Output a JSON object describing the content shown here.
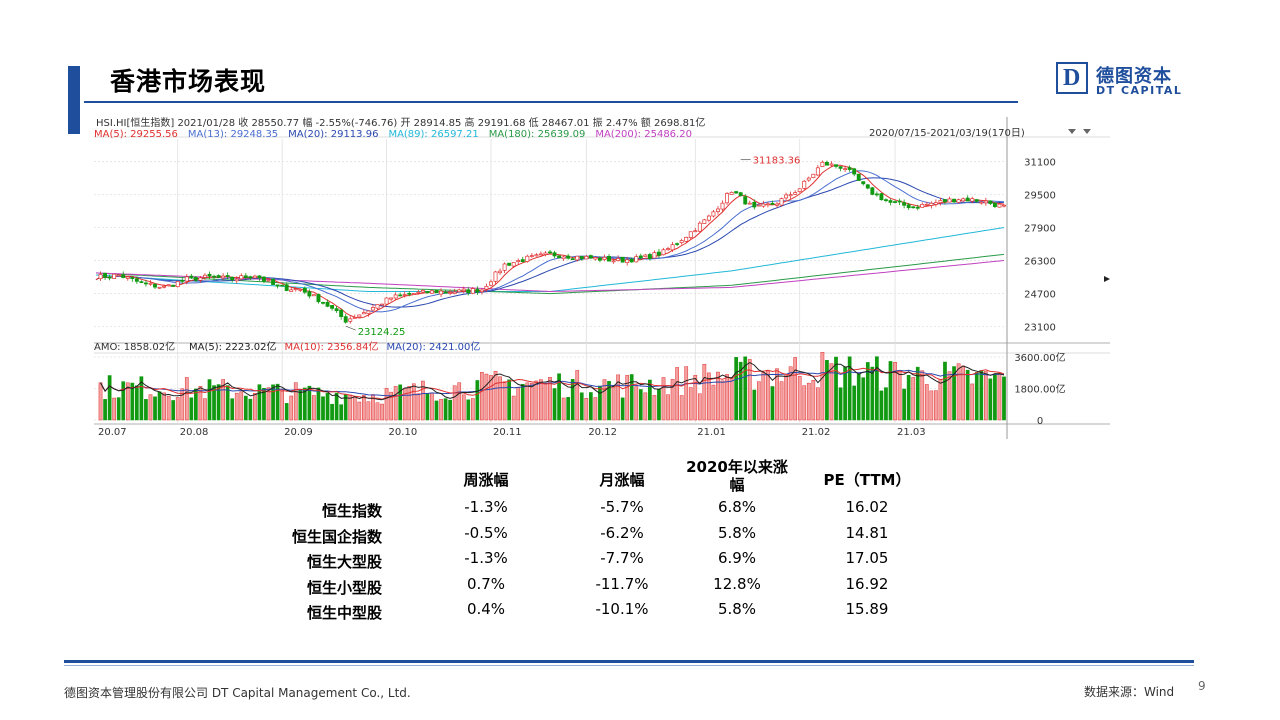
{
  "page": {
    "title": "香港市场表现",
    "logo_mark": "D",
    "logo_cn": "德图资本",
    "logo_en": "DT CAPITAL",
    "footer_left": "德图资本管理股份有限公司  DT Capital Management  Co., Ltd.",
    "footer_source": "数据来源：Wind",
    "page_number": "9"
  },
  "chart_data": [
    {
      "type": "candlestick",
      "header": "HSI.HI[恒生指数]    2021/01/28  收 28550.77  幅 -2.55%(-746.76)  开 28914.85  高 29191.68  低 28467.01  振 2.47%  额 2698.81亿",
      "period_label": "2020/07/15-2021/03/19(170日)",
      "ma_legend": [
        {
          "label": "MA(5): 29255.56",
          "color": "#e03030"
        },
        {
          "label": "MA(13): 29248.35",
          "color": "#4a6fd0"
        },
        {
          "label": "MA(20): 29113.96",
          "color": "#2a48b0"
        },
        {
          "label": "MA(89): 26597.21",
          "color": "#22b8d8"
        },
        {
          "label": "MA(180): 25639.09",
          "color": "#2a9a48"
        },
        {
          "label": "MA(200): 25486.20",
          "color": "#c040c0"
        }
      ],
      "y_ticks": [
        "31100",
        "29500",
        "27900",
        "26300",
        "24700",
        "23100"
      ],
      "ylim": [
        22500,
        31800
      ],
      "annotations": [
        {
          "label": "31183.36",
          "x_index": 142,
          "value": 31183.36
        },
        {
          "label": "23124.25",
          "x_index": 55,
          "value": 23124.25
        }
      ],
      "close_anchors": [
        [
          0,
          25500
        ],
        [
          5,
          25600
        ],
        [
          10,
          25200
        ],
        [
          15,
          25000
        ],
        [
          20,
          25400
        ],
        [
          25,
          25500
        ],
        [
          30,
          25400
        ],
        [
          35,
          25600
        ],
        [
          40,
          25000
        ],
        [
          45,
          24900
        ],
        [
          50,
          24300
        ],
        [
          55,
          23400
        ],
        [
          60,
          23900
        ],
        [
          65,
          24500
        ],
        [
          70,
          24700
        ],
        [
          75,
          24800
        ],
        [
          80,
          24800
        ],
        [
          85,
          24900
        ],
        [
          90,
          26100
        ],
        [
          95,
          26400
        ],
        [
          100,
          26600
        ],
        [
          105,
          26500
        ],
        [
          110,
          26400
        ],
        [
          115,
          26300
        ],
        [
          120,
          26400
        ],
        [
          125,
          26700
        ],
        [
          130,
          27500
        ],
        [
          135,
          28400
        ],
        [
          140,
          29700
        ],
        [
          145,
          28800
        ],
        [
          150,
          29100
        ],
        [
          155,
          29800
        ],
        [
          160,
          31000
        ],
        [
          165,
          30800
        ],
        [
          170,
          29700
        ],
        [
          175,
          29100
        ],
        [
          180,
          28900
        ],
        [
          185,
          29100
        ],
        [
          190,
          29300
        ],
        [
          195,
          29200
        ],
        [
          200,
          28900
        ]
      ],
      "ma_series": [
        {
          "name": "MA(89)",
          "color": "#22b8d8",
          "values": [
            [
              0,
              25600
            ],
            [
              60,
              24800
            ],
            [
              100,
              24800
            ],
            [
              140,
              25800
            ],
            [
              200,
              27900
            ]
          ]
        },
        {
          "name": "MA(180)",
          "color": "#2a9a48",
          "values": [
            [
              0,
              25700
            ],
            [
              60,
              25000
            ],
            [
              100,
              24700
            ],
            [
              140,
              25100
            ],
            [
              200,
              26600
            ]
          ]
        },
        {
          "name": "MA(200)",
          "color": "#c040c0",
          "values": [
            [
              0,
              25700
            ],
            [
              60,
              25200
            ],
            [
              100,
              24800
            ],
            [
              140,
              25000
            ],
            [
              200,
              26300
            ]
          ]
        }
      ]
    },
    {
      "type": "bar",
      "header_label": "AMO: 1858.02亿",
      "ma_legend": [
        {
          "label": "MA(5): 2223.02亿",
          "color": "#222222"
        },
        {
          "label": "MA(10): 2356.84亿",
          "color": "#e03030"
        },
        {
          "label": "MA(20): 2421.00亿",
          "color": "#2a48b0"
        }
      ],
      "y_ticks": [
        "3600.00亿",
        "1800.00亿",
        "0"
      ],
      "ylim": [
        0,
        3600
      ],
      "x_labels": [
        "20.07",
        "20.08",
        "20.09",
        "20.10",
        "20.11",
        "20.12",
        "21.01",
        "21.02",
        "21.03"
      ],
      "volume_anchors": [
        [
          0,
          1900
        ],
        [
          30,
          1700
        ],
        [
          60,
          1400
        ],
        [
          90,
          2100
        ],
        [
          120,
          2000
        ],
        [
          140,
          2600
        ],
        [
          160,
          2900
        ],
        [
          175,
          2600
        ],
        [
          200,
          2300
        ]
      ]
    },
    {
      "type": "table",
      "columns": [
        "周涨幅",
        "月涨幅",
        "2020年以来涨幅",
        "PE（TTM）"
      ],
      "rows": [
        {
          "name": "恒生指数",
          "values": [
            "-1.3%",
            "-5.7%",
            "6.8%",
            "16.02"
          ]
        },
        {
          "name": "恒生国企指数",
          "values": [
            "-0.5%",
            "-6.2%",
            "5.8%",
            "14.81"
          ]
        },
        {
          "name": "恒生大型股",
          "values": [
            "-1.3%",
            "-7.7%",
            "6.9%",
            "17.05"
          ]
        },
        {
          "name": "恒生小型股",
          "values": [
            "0.7%",
            "-11.7%",
            "12.8%",
            "16.92"
          ]
        },
        {
          "name": "恒生中型股",
          "values": [
            "0.4%",
            "-10.1%",
            "5.8%",
            "15.89"
          ]
        }
      ]
    }
  ]
}
